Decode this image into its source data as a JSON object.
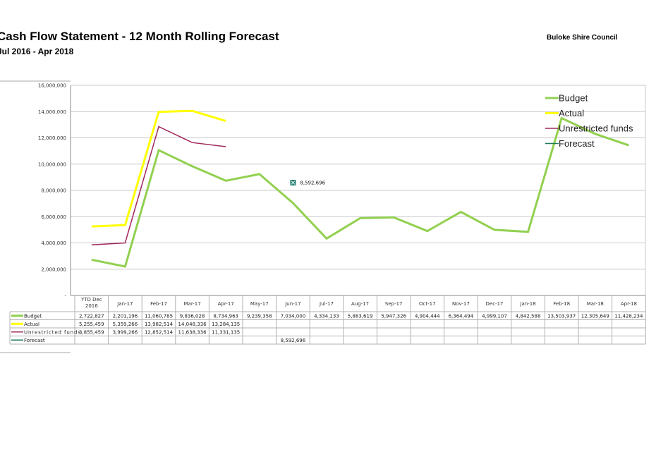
{
  "header": {
    "title": "Cash Flow Statement - 12 Month Rolling Forecast",
    "subtitle": "Jul 2016 - Apr 2018",
    "organization": "Buloke Shire Council"
  },
  "chart_data": {
    "type": "line",
    "ylim": [
      0,
      16000000
    ],
    "yticks": [
      "-",
      "2,000,000",
      "4,000,000",
      "6,000,000",
      "8,000,000",
      "10,000,000",
      "12,000,000",
      "14,000,000",
      "16,000,000"
    ],
    "ytick_values": [
      0,
      2000000,
      4000000,
      6000000,
      8000000,
      10000000,
      12000000,
      14000000,
      16000000
    ],
    "grid": true,
    "legend_position": "top-right",
    "categories": [
      [
        "YTD Dec",
        "2016"
      ],
      [
        "Jan-17"
      ],
      [
        "Feb-17"
      ],
      [
        "Mar-17"
      ],
      [
        "Apr-17"
      ],
      [
        "May-17"
      ],
      [
        "Jun-17"
      ],
      [
        "Jul-17"
      ],
      [
        "Aug-17"
      ],
      [
        "Sep-17"
      ],
      [
        "Oct-17"
      ],
      [
        "Nov-17"
      ],
      [
        "Dec-17"
      ],
      [
        "Jan-18"
      ],
      [
        "Feb-18"
      ],
      [
        "Mar-18"
      ],
      [
        "Apr-18"
      ]
    ],
    "series": [
      {
        "name": "Budget",
        "color": "#92d050",
        "width": 3,
        "values": [
          2722827,
          2201196,
          11060785,
          9836028,
          8734963,
          9239358,
          7034000,
          4334133,
          5883619,
          5947326,
          4904444,
          6364494,
          4999107,
          4842588,
          13503937,
          12305649,
          11428234
        ],
        "labels": [
          "2,722,827",
          "2,201,196",
          "11,060,785",
          "9,836,028",
          "8,734,963",
          "9,239,358",
          "7,034,000",
          "4,334,133",
          "5,883,619",
          "5,947,326",
          "4,904,444",
          "6,364,494",
          "4,999,107",
          "4,842,588",
          "13,503,937",
          "12,305,649",
          "11,428,234"
        ]
      },
      {
        "name": "Actual",
        "color": "#ffff00",
        "width": 3,
        "values": [
          5255459,
          5359266,
          13982514,
          14048336,
          13284135,
          null,
          null,
          null,
          null,
          null,
          null,
          null,
          null,
          null,
          null,
          null,
          null
        ],
        "labels": [
          "5,255,459",
          "5,359,266",
          "13,982,514",
          "14,048,336",
          "13,284,135",
          "",
          "",
          "",
          "",
          "",
          "",
          "",
          "",
          "",
          "",
          "",
          ""
        ]
      },
      {
        "name": "Unrestricted funds",
        "table_name": "Unrestricted funds",
        "color": "#a0285a",
        "width": 1.5,
        "values": [
          3855459,
          3999266,
          12852514,
          11638336,
          11331135,
          null,
          null,
          null,
          null,
          null,
          null,
          null,
          null,
          null,
          null,
          null,
          null
        ],
        "labels": [
          "3,855,459",
          "3,999,266",
          "12,852,514",
          "11,638,336",
          "11,331,135",
          "",
          "",
          "",
          "",
          "",
          "",
          "",
          "",
          "",
          "",
          "",
          ""
        ]
      },
      {
        "name": "Forecast",
        "color": "#1f7a5a",
        "width": 1.5,
        "values": [
          null,
          null,
          null,
          null,
          null,
          null,
          8592696,
          null,
          null,
          null,
          null,
          null,
          null,
          null,
          null,
          null,
          null
        ],
        "labels": [
          "",
          "",
          "",
          "",
          "",
          "",
          "8,592,696",
          "",
          "",
          "",
          "",
          "",
          "",
          "",
          "",
          "",
          ""
        ]
      }
    ],
    "annotations": [
      {
        "series": "Forecast",
        "category_index": 6,
        "text": "8,592,696"
      }
    ]
  }
}
